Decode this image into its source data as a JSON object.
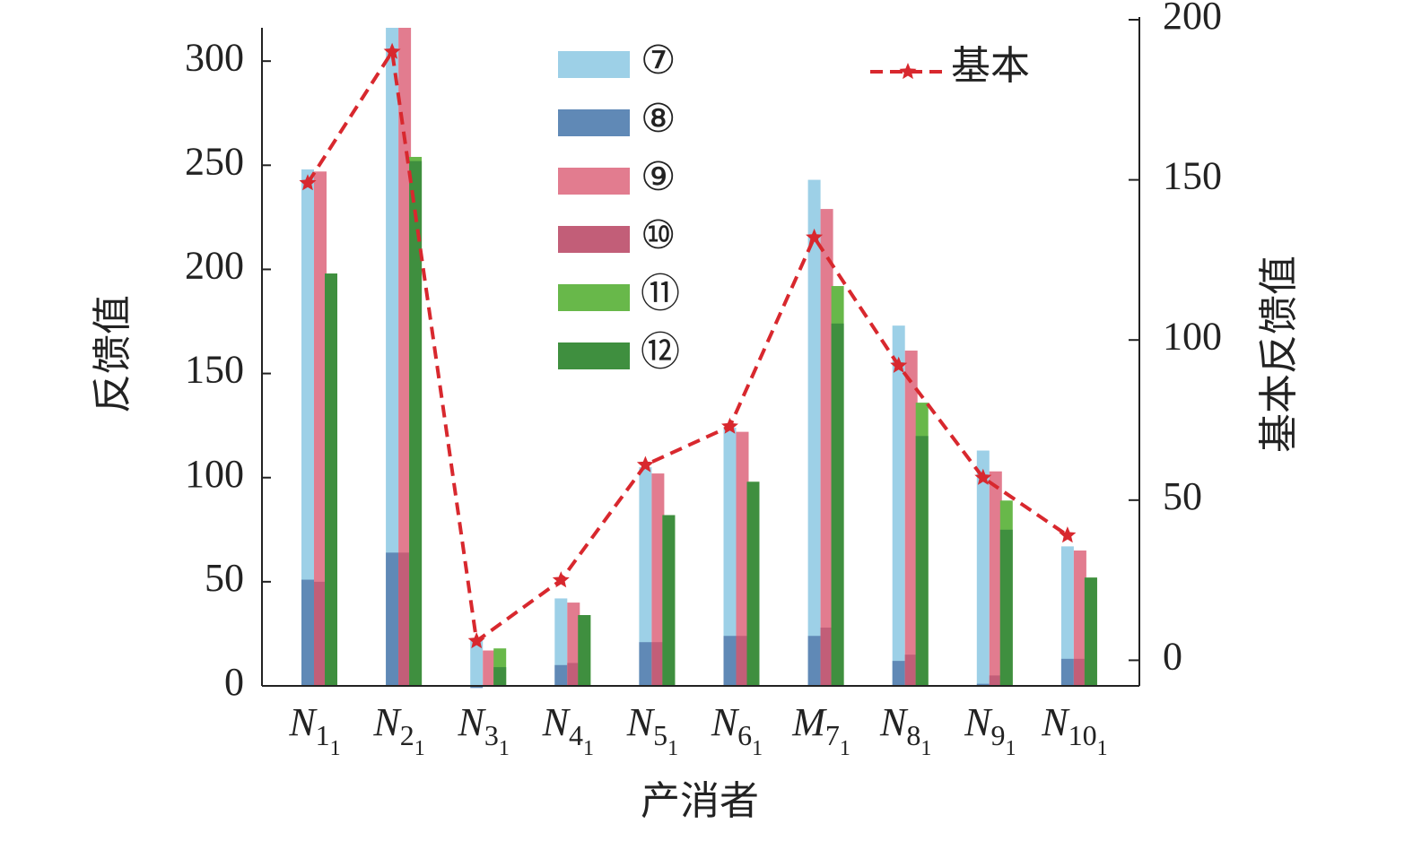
{
  "chart_data": {
    "type": "bar",
    "categories": [
      [
        "N",
        "1",
        "1"
      ],
      [
        "N",
        "2",
        "1"
      ],
      [
        "N",
        "3",
        "1"
      ],
      [
        "N",
        "4",
        "1"
      ],
      [
        "N",
        "5",
        "1"
      ],
      [
        "N",
        "6",
        "1"
      ],
      [
        "M",
        "7",
        "1"
      ],
      [
        "N",
        "8",
        "1"
      ],
      [
        "N",
        "9",
        "1"
      ],
      [
        "N",
        "10",
        "1"
      ]
    ],
    "x_label": "产消者",
    "y_label": "反馈值",
    "y2_label": "基本反馈值",
    "ylim": [
      0,
      316
    ],
    "yticks": [
      0,
      50,
      100,
      150,
      200,
      250,
      300
    ],
    "y2lim": [
      -8,
      200
    ],
    "y2ticks": [
      0,
      50,
      100,
      150,
      200
    ],
    "series": [
      {
        "name": "⑦",
        "color": "#9dd0e7",
        "values": [
          248,
          316,
          23,
          42,
          105,
          124,
          243,
          173,
          113,
          67
        ]
      },
      {
        "name": "⑧",
        "color": "#6089b6",
        "values": [
          51,
          64,
          -1,
          10,
          21,
          24,
          24,
          12,
          1,
          13
        ]
      },
      {
        "name": "⑨",
        "color": "#e27c8f",
        "values": [
          247,
          316,
          17,
          40,
          102,
          122,
          229,
          161,
          103,
          65
        ]
      },
      {
        "name": "⑩",
        "color": "#c25e78",
        "values": [
          50,
          64,
          0,
          11,
          21,
          24,
          28,
          15,
          5,
          13
        ]
      },
      {
        "name": "⑪",
        "color": "#68b84a",
        "values": [
          198,
          254,
          18,
          34,
          82,
          98,
          192,
          136,
          89,
          52
        ]
      },
      {
        "name": "⑫",
        "color": "#3f8f3f",
        "values": [
          198,
          252,
          9,
          34,
          82,
          98,
          174,
          120,
          75,
          52
        ]
      },
      {
        "name": "基本",
        "color": "#d8282e",
        "type": "line",
        "axis": "y2",
        "values": [
          149,
          190,
          6,
          25,
          61,
          73,
          132,
          92,
          57,
          39
        ]
      }
    ]
  }
}
